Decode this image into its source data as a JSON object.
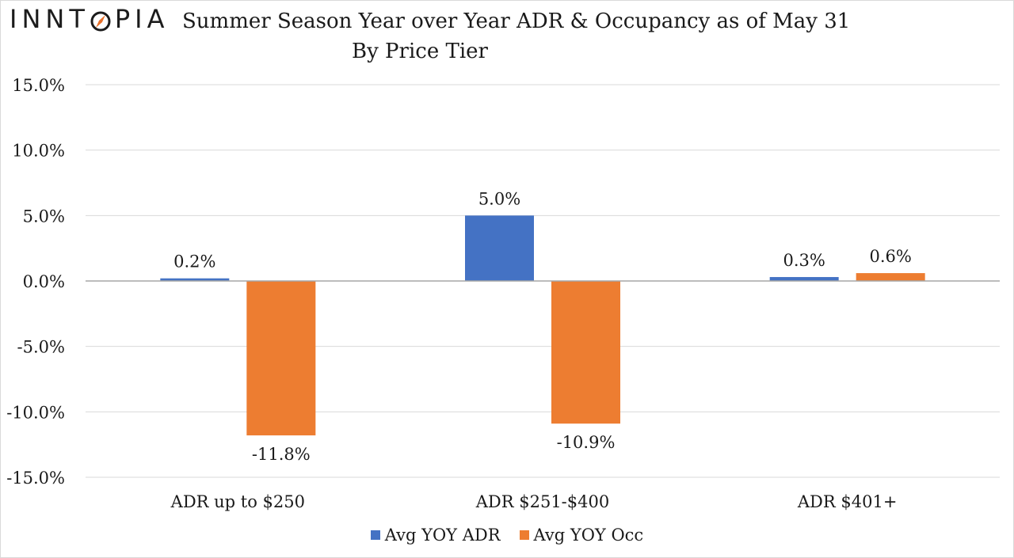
{
  "brand": {
    "logo_text_left": "INNT",
    "logo_text_right": "PIA",
    "logo_full": "INNTOPIA",
    "accent_color": "#e8702a"
  },
  "chart_data": {
    "type": "bar",
    "title": "Summer Season Year over Year ADR & Occupancy as of May 31",
    "subtitle": "By Price Tier",
    "xlabel": "",
    "ylabel": "",
    "ylim": [
      -15,
      15
    ],
    "y_ticks": [
      15,
      10,
      5,
      0,
      -5,
      -10,
      -15
    ],
    "y_tick_labels": [
      "15.0%",
      "10.0%",
      "5.0%",
      "0.0%",
      "-5.0%",
      "-10.0%",
      "-15.0%"
    ],
    "grid": true,
    "legend_position": "bottom-center",
    "categories": [
      "ADR up to $250",
      "ADR $251-$400",
      "ADR $401+"
    ],
    "series": [
      {
        "name": "Avg YOY ADR",
        "color": "#4472c4",
        "values": [
          0.2,
          5.0,
          0.3
        ],
        "labels": [
          "0.2%",
          "5.0%",
          "0.3%"
        ]
      },
      {
        "name": "Avg YOY Occ",
        "color": "#ed7d31",
        "values": [
          -11.8,
          -10.9,
          0.6
        ],
        "labels": [
          "-11.8%",
          "-10.9%",
          "0.6%"
        ]
      }
    ]
  }
}
